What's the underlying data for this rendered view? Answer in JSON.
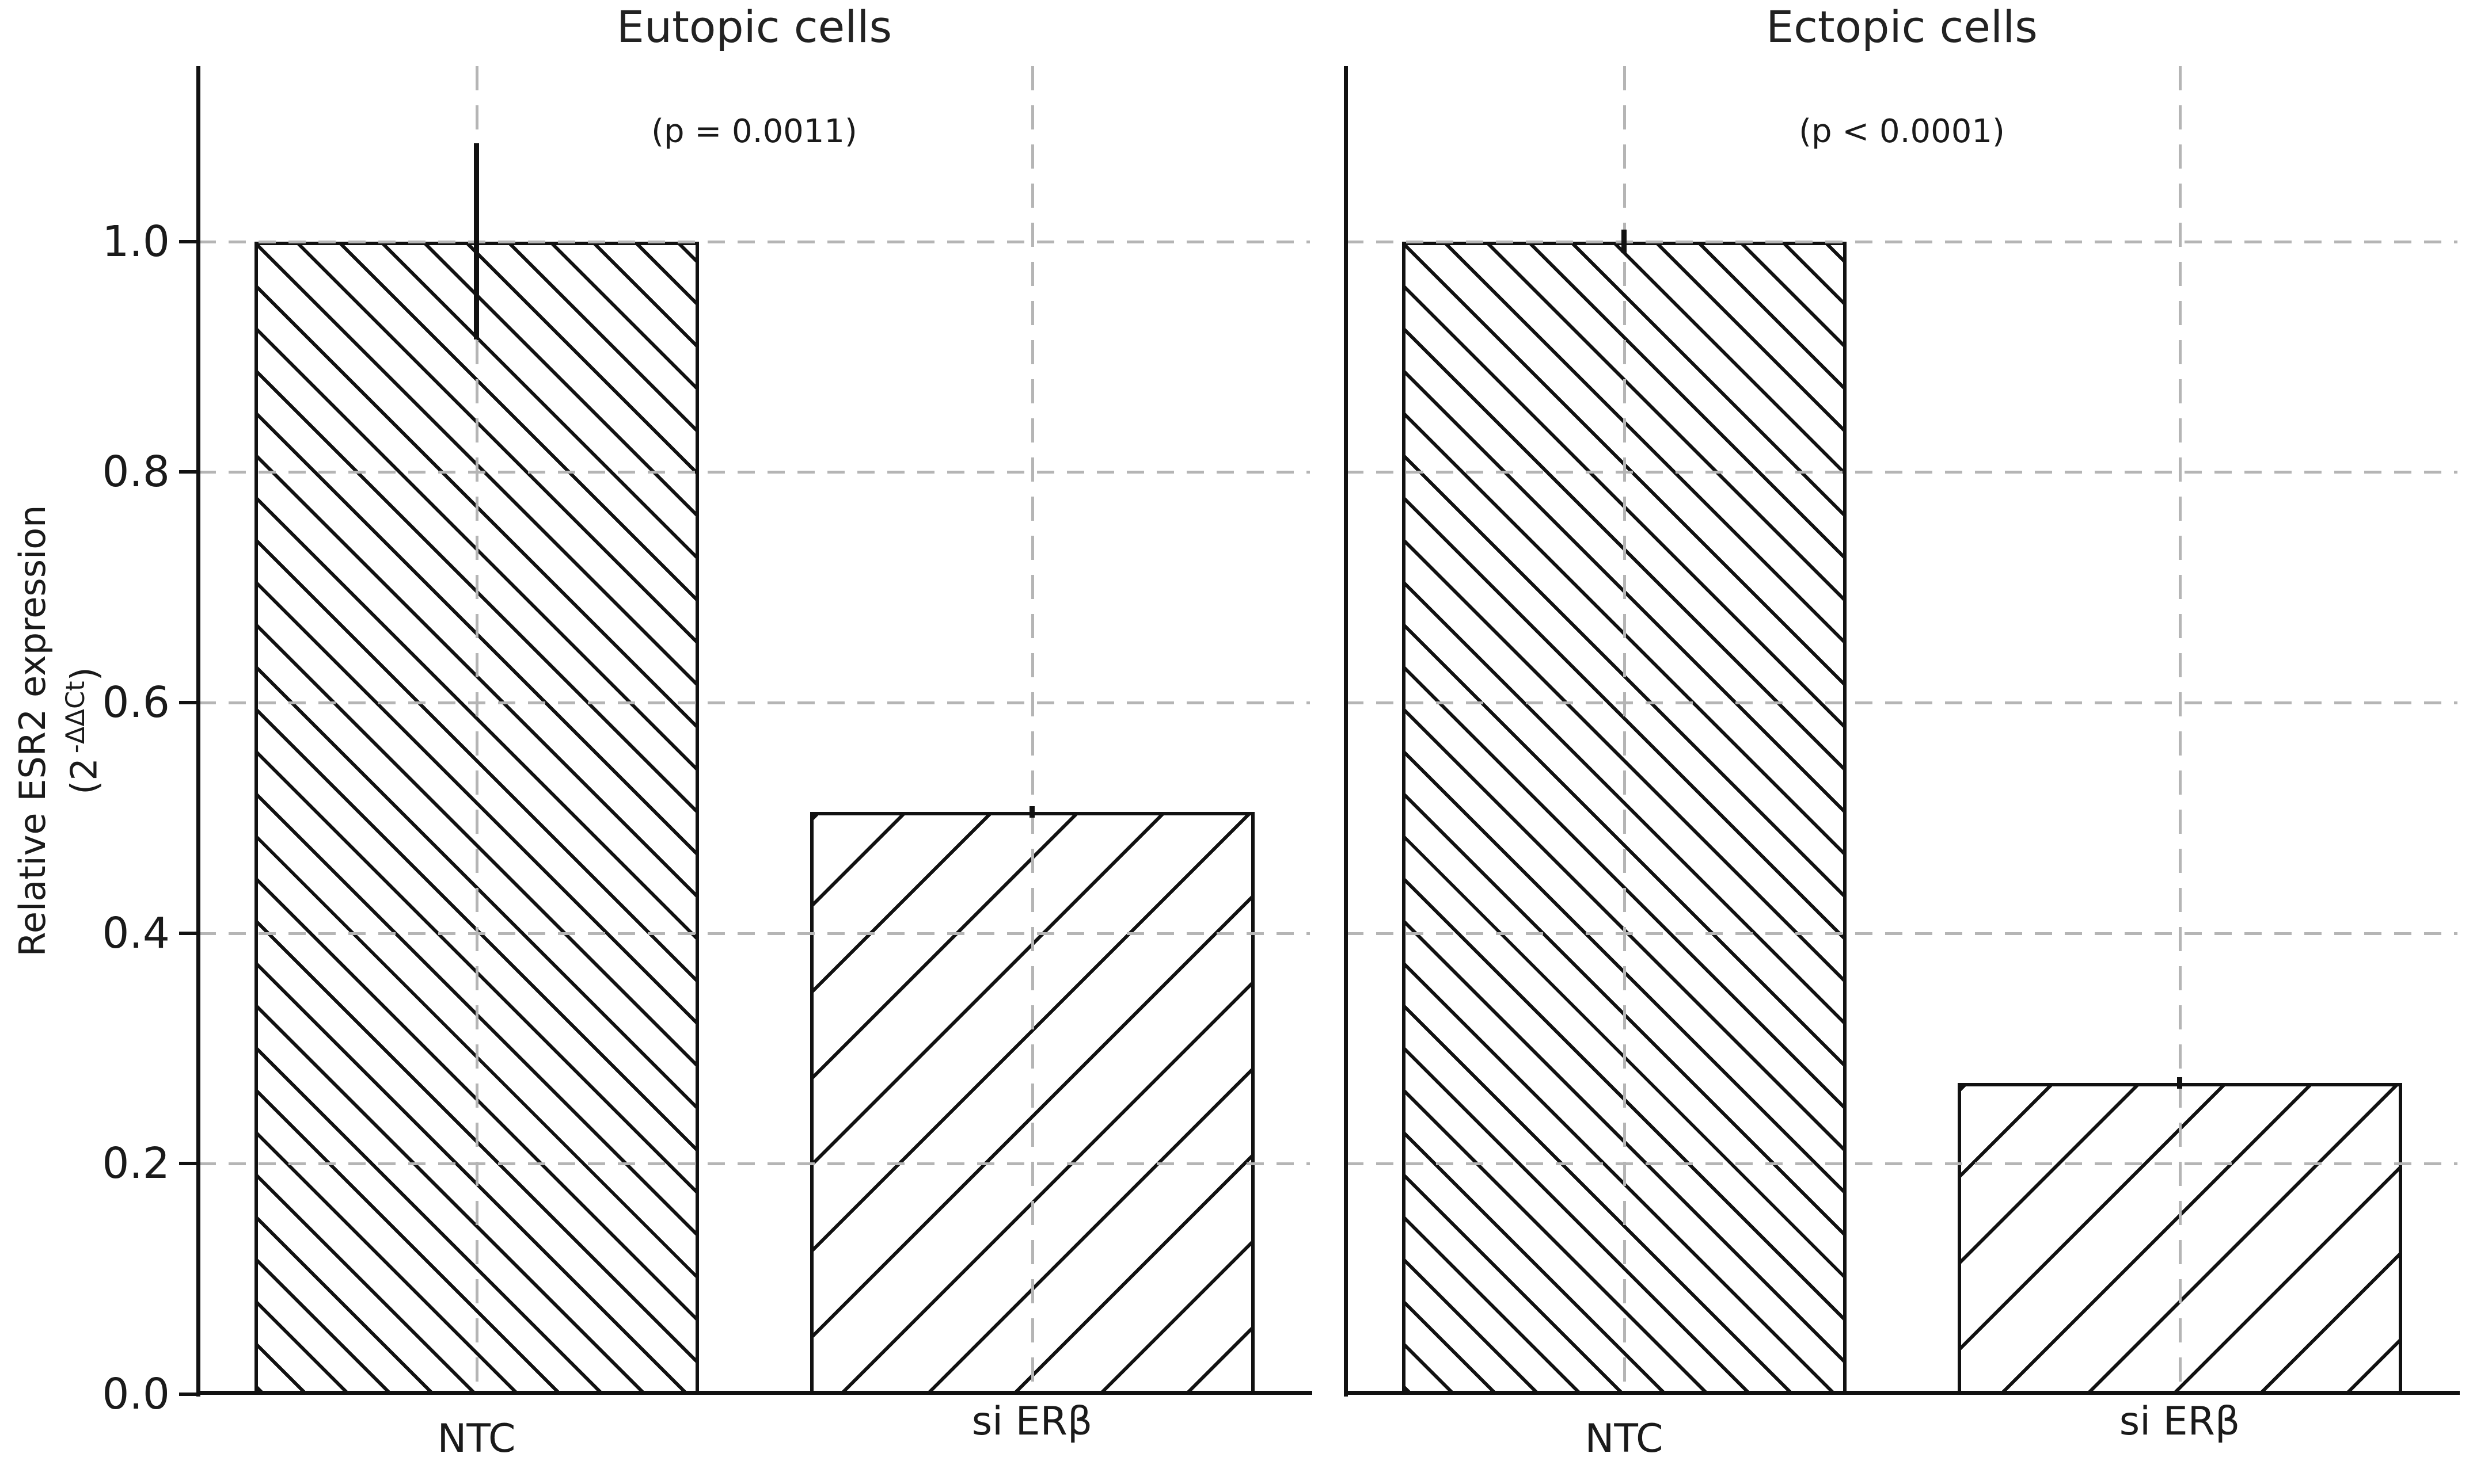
{
  "figure": {
    "background": "#ffffff",
    "text_color": "#1a1a1a",
    "line_color": "#111111",
    "grid_color": "#b5b5b5"
  },
  "ylabel": {
    "line1": "Relative ESR2 expression",
    "line2_open": "(2",
    "line2_sup": "-ΔΔCt",
    "line2_close": ")",
    "full_text": "Relative ESR2 expression (2^-ΔΔCt)"
  },
  "chart_data": [
    {
      "type": "bar",
      "panel": "left",
      "title": "Eutopic cells",
      "annotation": "(p = 0.0011)",
      "categories": [
        "NTC",
        "si ERβ"
      ],
      "values": [
        1.0,
        0.505
      ],
      "errors": [
        0.085,
        0.005
      ],
      "hatch": [
        "\\",
        "/"
      ],
      "bar_fill": "white",
      "bar_edge": "black",
      "ylim": [
        0,
        1.152
      ],
      "yticks": [
        0,
        0.2,
        0.4,
        0.6,
        0.8,
        1.0
      ],
      "yticklabels": [
        "0.0",
        "0.2",
        "0.4",
        "0.6",
        "0.8",
        "1.0"
      ],
      "show_ytick_labels": true,
      "grid": "dashed light-gray horizontal at yticks and vertical at bar centers",
      "legend": "none"
    },
    {
      "type": "bar",
      "panel": "right",
      "title": "Ectopic cells",
      "annotation": "(p < 0.0001)",
      "categories": [
        "NTC",
        "si ERβ"
      ],
      "values": [
        1.0,
        0.27
      ],
      "errors": [
        0.01,
        0.005
      ],
      "hatch": [
        "\\",
        "/"
      ],
      "bar_fill": "white",
      "bar_edge": "black",
      "ylim": [
        0,
        1.152
      ],
      "yticks": [
        0,
        0.2,
        0.4,
        0.6,
        0.8,
        1.0
      ],
      "yticklabels": [
        "0.0",
        "0.2",
        "0.4",
        "0.6",
        "0.8",
        "1.0"
      ],
      "show_ytick_labels": false,
      "grid": "dashed light-gray horizontal at yticks and vertical at bar centers",
      "legend": "none"
    }
  ]
}
